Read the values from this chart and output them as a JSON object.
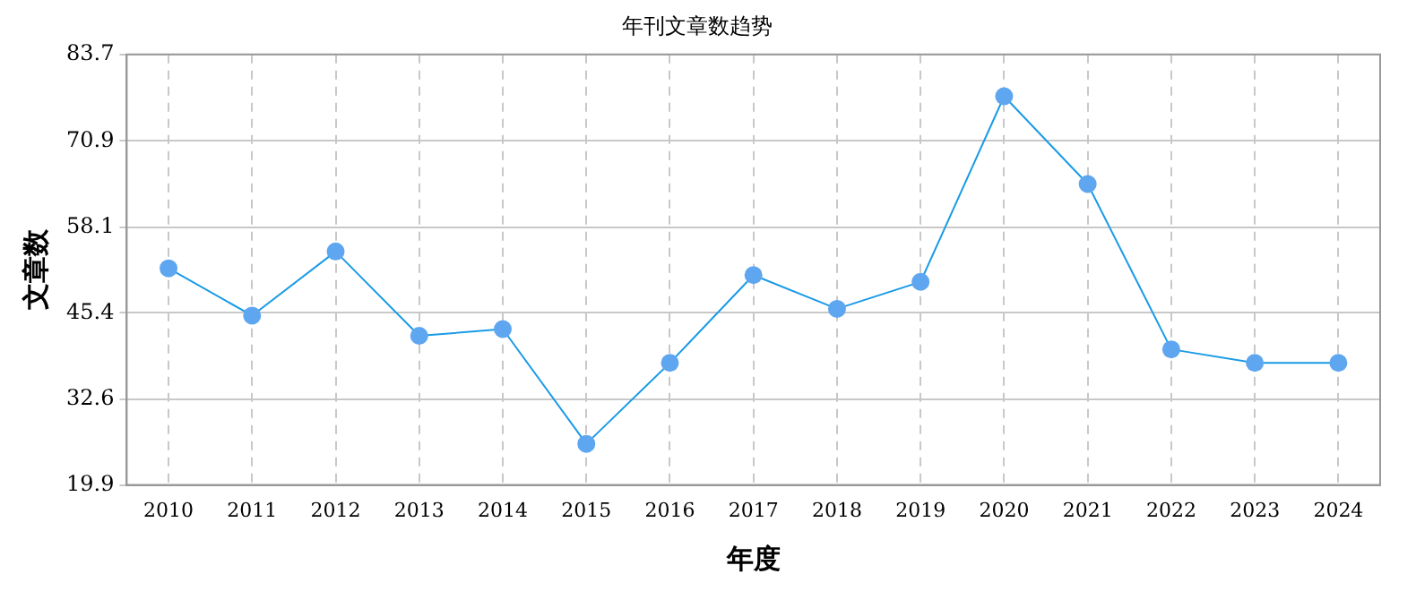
{
  "chart_data": {
    "type": "line",
    "title": "年刊文章数趋势",
    "xlabel": "年度",
    "ylabel": "文章数",
    "categories": [
      "2010",
      "2011",
      "2012",
      "2013",
      "2014",
      "2015",
      "2016",
      "2017",
      "2018",
      "2019",
      "2020",
      "2021",
      "2022",
      "2023",
      "2024"
    ],
    "series": [
      {
        "color": "#1a9be6",
        "values": [
          52,
          45,
          54.5,
          42,
          43,
          26,
          38,
          51,
          46,
          50,
          77.5,
          64.5,
          40,
          38,
          38
        ]
      }
    ],
    "ylim": [
      19.9,
      83.7
    ],
    "yticks": [
      19.9,
      32.6,
      45.4,
      58.1,
      70.9,
      83.7
    ],
    "grid": true,
    "legend": false,
    "marker": "circle",
    "line_style": "solid"
  }
}
